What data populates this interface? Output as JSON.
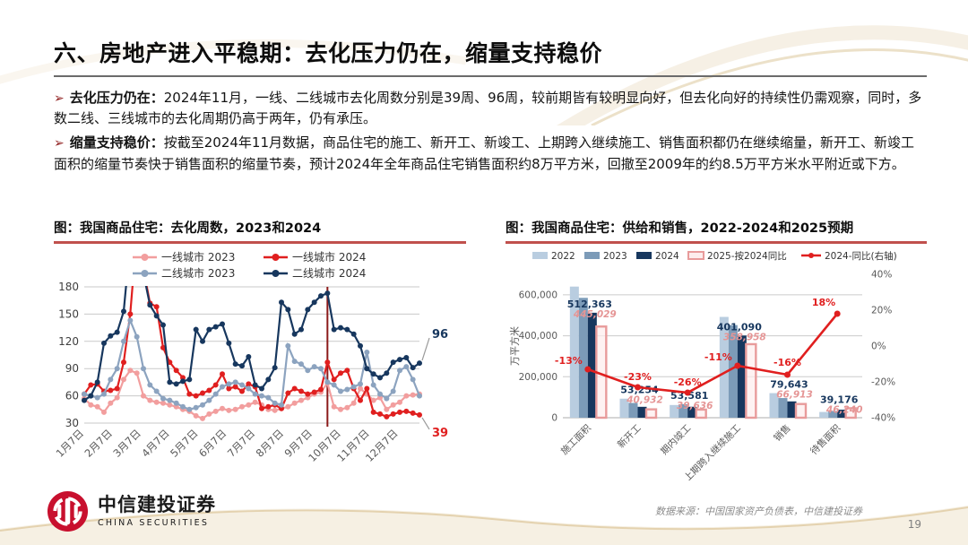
{
  "header": {
    "title": "六、房地产进入平稳期：去化压力仍在，缩量支持稳价"
  },
  "icons": {
    "bullet_arrow": "➢"
  },
  "bullets": [
    {
      "lead": "去化压力仍在：",
      "text": "2024年11月，一线、二线城市去化周数分别是39周、96周，较前期皆有较明显向好，但去化向好的持续性仍需观察，同时，多数二线、三线城市的去化周期仍高于两年，仍有承压。"
    },
    {
      "lead": "缩量支持稳价：",
      "text": "按截至2024年11月数据，商品住宅的施工、新开工、新竣工、上期跨入继续施工、销售面积都仍在继续缩量，新开工、新竣工面积的缩量节奏快于销售面积的缩量节奏，预计2024年全年商品住宅销售面积约8万平方米，回撤至2009年的约8.5万平方米水平附近或下方。"
    }
  ],
  "charts": {
    "left_title": "图：我国商品住宅：去化周数，2023和2024",
    "right_title": "图：我国商品住宅：供给和销售，2022-2024和2025预期"
  },
  "colors": {
    "accent_red": "#C0504D",
    "dark_red": "#8B1A1A",
    "line_red": "#E01F1F",
    "pink": "#F29E9E",
    "navy": "#17375E",
    "slate": "#8CA3BF",
    "bar_2022": "#B9CDE0",
    "bar_2023": "#7C9BB8"
  },
  "chart_data": [
    {
      "type": "line",
      "title": "图：我国商品住宅：去化周数，2023和2024",
      "xlabel": "",
      "ylabel": "",
      "ylim": [
        30,
        180
      ],
      "yticks": [
        30,
        60,
        90,
        120,
        150,
        180
      ],
      "x_tick_labels": [
        "1月7日",
        "2月7日",
        "3月7日",
        "4月7日",
        "5月7日",
        "6月7日",
        "7月7日",
        "8月7日",
        "9月7日",
        "10月7日",
        "11月7日",
        "12月7日"
      ],
      "grid": true,
      "vline_week_index": 37,
      "vline_color": "#8B1A1A",
      "end_labels": [
        {
          "text": "96",
          "series": "二线城市 2024",
          "color": "#17375E"
        },
        {
          "text": "39",
          "series": "一线城市 2024",
          "color": "#E01F1F"
        }
      ],
      "legend_position": "top",
      "series": [
        {
          "name": "一线城市 2023",
          "color": "#F29E9E",
          "values": [
            57,
            50,
            48,
            42,
            52,
            58,
            78,
            88,
            85,
            60,
            55,
            53,
            52,
            50,
            48,
            45,
            43,
            38,
            35,
            40,
            43,
            46,
            44,
            45,
            48,
            50,
            53,
            50,
            45,
            44,
            46,
            48,
            52,
            55,
            58,
            62,
            64,
            74,
            48,
            45,
            47,
            52,
            68,
            62,
            55,
            58,
            45,
            50,
            53,
            60,
            61,
            62
          ]
        },
        {
          "name": "一线城市 2024",
          "color": "#E01F1F",
          "values": [
            62,
            72,
            73,
            65,
            66,
            68,
            97,
            150,
            240,
            200,
            162,
            158,
            113,
            97,
            88,
            80,
            62,
            60,
            63,
            66,
            72,
            84,
            68,
            70,
            65,
            73,
            70,
            46,
            48,
            50,
            46,
            63,
            68,
            65,
            62,
            64,
            67,
            97,
            78,
            85,
            88,
            68,
            55,
            68,
            42,
            40,
            37,
            40,
            42,
            43,
            41,
            39
          ]
        },
        {
          "name": "二线城市 2023",
          "color": "#8CA3BF",
          "values": [
            62,
            60,
            58,
            62,
            78,
            90,
            120,
            143,
            125,
            90,
            72,
            65,
            57,
            55,
            52,
            48,
            45,
            47,
            50,
            55,
            62,
            70,
            73,
            75,
            72,
            68,
            62,
            60,
            58,
            52,
            50,
            115,
            98,
            95,
            88,
            92,
            90,
            75,
            72,
            65,
            67,
            70,
            73,
            108,
            72,
            62,
            57,
            65,
            88,
            92,
            78,
            60
          ]
        },
        {
          "name": "二线城市 2024",
          "color": "#17375E",
          "values": [
            55,
            60,
            75,
            118,
            126,
            130,
            153,
            230,
            255,
            195,
            160,
            148,
            138,
            75,
            73,
            76,
            78,
            133,
            120,
            133,
            136,
            139,
            118,
            95,
            93,
            103,
            72,
            68,
            78,
            91,
            163,
            155,
            128,
            133,
            155,
            163,
            170,
            173,
            133,
            135,
            133,
            128,
            115,
            90,
            84,
            80,
            85,
            97,
            100,
            102,
            91,
            96
          ]
        }
      ]
    },
    {
      "type": "bar",
      "title": "图：我国商品住宅：供给和销售，2022-2024和2025预期",
      "categories": [
        "施工面积",
        "新开工",
        "期内竣工",
        "上期跨入继续施工",
        "销售",
        "待售面积"
      ],
      "ylabel": "万平方米",
      "left_axis": {
        "tick_values": [
          0,
          200000,
          400000,
          600000
        ],
        "tick_labels": [
          "0",
          "200,000",
          "400,000",
          "600,000"
        ],
        "max": 700000
      },
      "right_axis": {
        "tick_values": [
          -40,
          -20,
          0,
          20,
          40
        ],
        "tick_labels": [
          "-40%",
          "-20%",
          "0%",
          "20%",
          "40%"
        ],
        "min": -40,
        "max": 40
      },
      "legend_position": "top",
      "series": [
        {
          "name": "2022",
          "color": "#B9CDE0",
          "style": "fill",
          "values": [
            640000,
            93000,
            62000,
            492000,
            120000,
            28000
          ]
        },
        {
          "name": "2023",
          "color": "#7C9BB8",
          "style": "fill",
          "values": [
            585000,
            72000,
            66000,
            452000,
            96000,
            33000
          ]
        },
        {
          "name": "2024",
          "color": "#17375E",
          "style": "fill",
          "values": [
            512363,
            53254,
            53581,
            401090,
            79643,
            39176
          ],
          "labels": [
            "512,363",
            "53,254",
            "53,581",
            "401,090",
            "79,643",
            "39,176"
          ]
        },
        {
          "name": "2025-按2024同比",
          "color": "#E89B9B",
          "style": "outline",
          "values": [
            445029,
            40932,
            39636,
            358958,
            66913,
            46240
          ],
          "labels": [
            "445,029",
            "40,932",
            "39,636",
            "358,958",
            "66,913",
            "46,240"
          ]
        }
      ],
      "line_series": {
        "name": "2024-同比(右轴)",
        "color": "#E01F1F",
        "axis": "right",
        "values": [
          -13,
          -23,
          -26,
          -11,
          -16,
          18
        ],
        "labels": [
          "-13%",
          "-23%",
          "-26%",
          "-11%",
          "-16%",
          "18%"
        ]
      }
    }
  ],
  "footer": {
    "logo_cn": "中信建投证券",
    "logo_en": "CHINA SECURITIES",
    "source": "数据来源：中国国家资产负债表，中信建投证券",
    "page_number": "19"
  }
}
